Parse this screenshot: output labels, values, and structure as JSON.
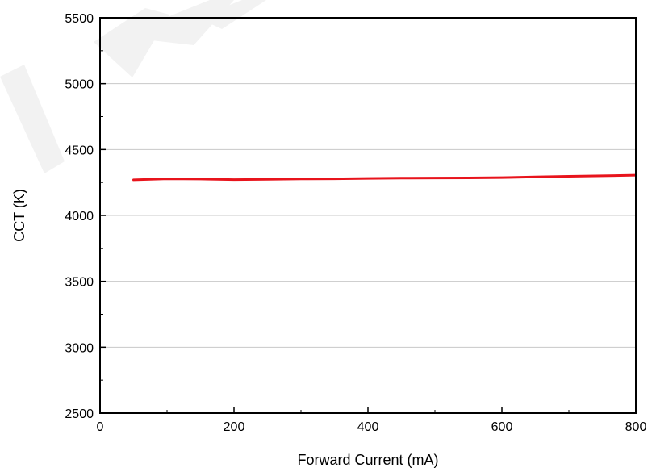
{
  "chart_data": {
    "type": "line",
    "xlabel": "Forward Current (mA)",
    "ylabel": "CCT (K)",
    "xlim": [
      0,
      800
    ],
    "ylim": [
      2500,
      5500
    ],
    "x_ticks": [
      "0",
      "200",
      "400",
      "600",
      "800"
    ],
    "y_ticks": [
      "2500",
      "3000",
      "3500",
      "4000",
      "4500",
      "5000",
      "5500"
    ],
    "x_tick_values": [
      0,
      200,
      400,
      600,
      800
    ],
    "y_tick_values": [
      2500,
      3000,
      3500,
      4000,
      4500,
      5000,
      5500
    ],
    "grid": "horizontal",
    "series": [
      {
        "color": "#e8141c",
        "x": [
          50,
          100,
          150,
          200,
          250,
          300,
          350,
          400,
          450,
          500,
          550,
          600,
          650,
          700,
          750,
          800
        ],
        "y": [
          4270,
          4278,
          4276,
          4272,
          4274,
          4277,
          4278,
          4281,
          4283,
          4284,
          4285,
          4287,
          4292,
          4297,
          4301,
          4305
        ]
      }
    ]
  }
}
